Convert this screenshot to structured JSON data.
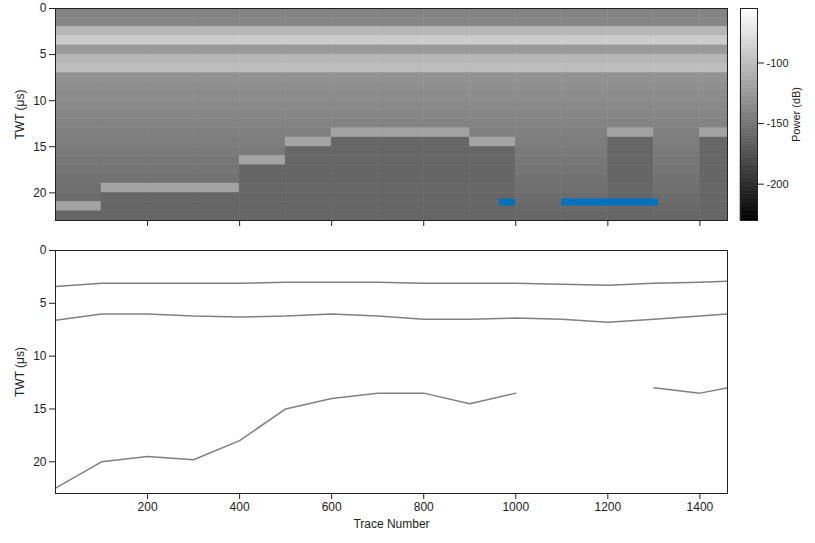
{
  "chart_data": [
    {
      "type": "heatmap",
      "ylabel": "TWT (μs)",
      "x_edges": [
        0,
        100,
        200,
        300,
        400,
        500,
        600,
        700,
        800,
        900,
        1000,
        1100,
        1200,
        1300,
        1400,
        1460
      ],
      "y_edges": [
        0,
        1,
        2,
        3,
        4,
        5,
        6,
        7,
        8,
        9,
        10,
        11,
        12,
        13,
        14,
        15,
        16,
        17,
        18,
        19,
        20,
        21,
        22,
        23
      ],
      "cells": [
        [
          -140,
          -138,
          -105,
          -90,
          -125,
          -105,
          -100,
          -130,
          -132,
          -134,
          -136,
          -138,
          -140,
          -142,
          -144,
          -146,
          -148,
          -150,
          -152,
          -154,
          -156,
          -118,
          -160
        ],
        [
          -140,
          -138,
          -105,
          -90,
          -125,
          -105,
          -100,
          -130,
          -132,
          -134,
          -136,
          -138,
          -140,
          -142,
          -144,
          -146,
          -148,
          -150,
          -152,
          -118,
          -160,
          -160,
          -160
        ],
        [
          -140,
          -138,
          -105,
          -90,
          -125,
          -105,
          -100,
          -130,
          -132,
          -134,
          -136,
          -138,
          -140,
          -142,
          -144,
          -146,
          -148,
          -150,
          -152,
          -118,
          -160,
          -160,
          -160
        ],
        [
          -140,
          -138,
          -105,
          -90,
          -125,
          -105,
          -100,
          -130,
          -132,
          -134,
          -136,
          -138,
          -140,
          -142,
          -144,
          -146,
          -148,
          -150,
          -152,
          -118,
          -160,
          -160,
          -160
        ],
        [
          -140,
          -138,
          -105,
          -90,
          -125,
          -105,
          -100,
          -130,
          -132,
          -134,
          -136,
          -138,
          -140,
          -142,
          -144,
          -146,
          -118,
          -160,
          -160,
          -160,
          -160,
          -160,
          -160
        ],
        [
          -140,
          -138,
          -105,
          -90,
          -125,
          -105,
          -100,
          -130,
          -132,
          -134,
          -136,
          -138,
          -140,
          -142,
          -118,
          -160,
          -160,
          -160,
          -160,
          -160,
          -160,
          -160,
          -160
        ],
        [
          -140,
          -138,
          -105,
          -90,
          -125,
          -105,
          -100,
          -130,
          -132,
          -134,
          -136,
          -138,
          -140,
          -118,
          -160,
          -160,
          -160,
          -160,
          -160,
          -160,
          -160,
          -160,
          -160
        ],
        [
          -140,
          -138,
          -105,
          -90,
          -125,
          -105,
          -100,
          -130,
          -132,
          -134,
          -136,
          -138,
          -140,
          -118,
          -160,
          -160,
          -160,
          -160,
          -160,
          -160,
          -160,
          -160,
          -160
        ],
        [
          -140,
          -138,
          -105,
          -90,
          -125,
          -105,
          -100,
          -130,
          -132,
          -134,
          -136,
          -138,
          -140,
          -118,
          -160,
          -160,
          -160,
          -160,
          -160,
          -160,
          -160,
          -160,
          -160
        ],
        [
          -140,
          -138,
          -105,
          -90,
          -125,
          -105,
          -100,
          -130,
          -132,
          -134,
          -136,
          -138,
          -140,
          -142,
          -118,
          -160,
          -160,
          -160,
          -160,
          -160,
          -160,
          -160,
          -160
        ],
        [
          -140,
          -138,
          -105,
          -90,
          -125,
          -105,
          -100,
          -130,
          -132,
          -134,
          -136,
          -138,
          -140,
          -142,
          -144,
          -146,
          -148,
          -150,
          -152,
          -154,
          -156,
          -158,
          -160
        ],
        [
          -140,
          -138,
          -105,
          -90,
          -125,
          -105,
          -100,
          -130,
          -132,
          -134,
          -136,
          -138,
          -140,
          -142,
          -144,
          -146,
          -148,
          -150,
          -152,
          -154,
          -156,
          -158,
          -160
        ],
        [
          -140,
          -138,
          -105,
          -90,
          -125,
          -105,
          -100,
          -130,
          -132,
          -134,
          -136,
          -138,
          -140,
          -118,
          -160,
          -160,
          -160,
          -160,
          -160,
          -160,
          -160,
          -160,
          -160
        ],
        [
          -140,
          -138,
          -105,
          -90,
          -125,
          -105,
          -100,
          -130,
          -132,
          -134,
          -136,
          -138,
          -140,
          -142,
          -144,
          -146,
          -148,
          -150,
          -152,
          -154,
          -156,
          -158,
          -160
        ],
        [
          -140,
          -138,
          -105,
          -90,
          -125,
          -105,
          -100,
          -130,
          -132,
          -134,
          -136,
          -138,
          -140,
          -118,
          -160,
          -160,
          -160,
          -160,
          -160,
          -160,
          -160,
          -160,
          -160
        ]
      ],
      "xlim": [
        0,
        1460
      ],
      "xticks": [
        200,
        400,
        600,
        800,
        1000,
        1200,
        1400
      ],
      "ylim": [
        0,
        23
      ],
      "yticks": [
        0,
        5,
        10,
        15,
        20
      ],
      "tick_labels": "y",
      "colorbar": {
        "label": "Power (dB)",
        "range": [
          -230,
          -55
        ],
        "ticks": [
          -100,
          -150,
          -200
        ]
      },
      "segments": [
        {
          "x": [
            965,
            1000
          ],
          "y": 21,
          "color": "#0072BD"
        },
        {
          "x": [
            1100,
            1310
          ],
          "y": 21,
          "color": "#0072BD"
        }
      ]
    },
    {
      "type": "line",
      "xlabel": "Trace Number",
      "ylabel": "TWT (μs)",
      "x": [
        0,
        100,
        200,
        300,
        400,
        500,
        600,
        700,
        800,
        900,
        1000,
        1100,
        1200,
        1300,
        1400,
        1460
      ],
      "series": [
        {
          "color": "#808080",
          "values": [
            3.4,
            3.1,
            3.1,
            3.1,
            3.1,
            3.0,
            3.0,
            3.0,
            3.1,
            3.1,
            3.1,
            3.2,
            3.3,
            3.1,
            3.0,
            2.9
          ]
        },
        {
          "color": "#808080",
          "values": [
            6.6,
            6.0,
            6.0,
            6.2,
            6.3,
            6.2,
            6.0,
            6.2,
            6.5,
            6.5,
            6.4,
            6.5,
            6.8,
            6.5,
            6.2,
            6.0
          ]
        },
        {
          "color": "#808080",
          "values": [
            22.5,
            20.0,
            19.5,
            19.8,
            18.0,
            15.0,
            14.0,
            13.5,
            13.5,
            14.5,
            13.5,
            null,
            null,
            13.0,
            13.5,
            13.0
          ]
        }
      ],
      "xlim": [
        0,
        1460
      ],
      "xticks": [
        200,
        400,
        600,
        800,
        1000,
        1200,
        1400
      ],
      "ylim": [
        0,
        23
      ],
      "yticks": [
        0,
        5,
        10,
        15,
        20
      ]
    }
  ]
}
